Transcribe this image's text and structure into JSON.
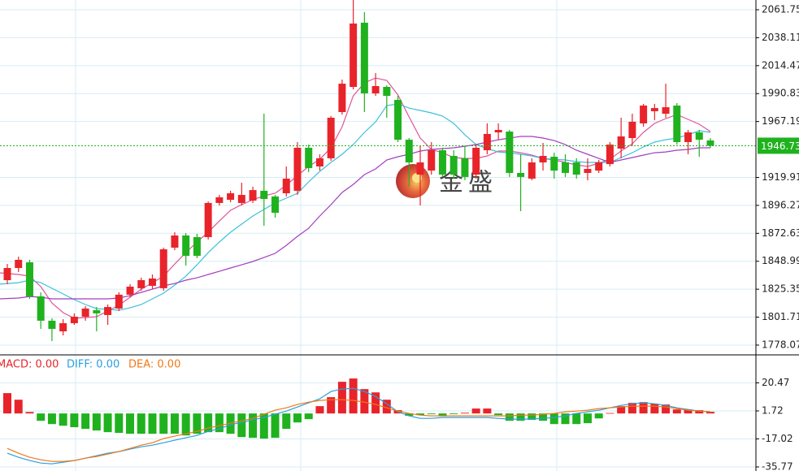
{
  "chart_data": [
    {
      "type": "candlestick",
      "up_color": "#e8242a",
      "down_color": "#1fb21e",
      "open": [
        1833.0,
        1843.3,
        1848.1,
        1819.3,
        1798.7,
        1789.7,
        1796.6,
        1802.1,
        1807.6,
        1803.5,
        1809.0,
        1820.7,
        1826.2,
        1828.2,
        1826.2,
        1860.5,
        1870.8,
        1869.4,
        1869.4,
        1898.3,
        1901.0,
        1898.3,
        1900.3,
        1908.6,
        1903.8,
        1906.5,
        1908.6,
        1945.0,
        1929.2,
        1936.1,
        1975.2,
        1996.5,
        2050.8,
        1991.0,
        1996.5,
        1985.5,
        1951.8,
        1922.3,
        1925.7,
        1942.9,
        1938.1,
        1936.1,
        1922.3,
        1942.9,
        1958.0,
        1958.7,
        1923.7,
        1918.9,
        1932.6,
        1937.4,
        1932.6,
        1932.6,
        1923.7,
        1925.7,
        1931.2,
        1944.3,
        1953.2,
        1965.6,
        1975.9,
        1973.8,
        1980.7,
        1949.8,
        1958.0,
        1951.2
      ],
      "high": [
        1846.7,
        1852.9,
        1850.2,
        1822.7,
        1800.7,
        1800.0,
        1804.9,
        1811.0,
        1810.3,
        1812.4,
        1822.7,
        1829.6,
        1835.1,
        1837.8,
        1860.5,
        1873.5,
        1872.9,
        1872.2,
        1899.6,
        1905.1,
        1908.6,
        1915.4,
        1912.0,
        1973.8,
        1905.1,
        1929.2,
        1949.8,
        1947.7,
        1939.5,
        1971.8,
        2002.7,
        2070.0,
        2059.7,
        2008.2,
        1997.9,
        1988.9,
        1953.2,
        1946.4,
        1949.8,
        1945.0,
        1942.9,
        1946.4,
        1947.7,
        1965.6,
        1965.6,
        1960.1,
        1939.5,
        1936.1,
        1949.1,
        1940.9,
        1939.5,
        1936.1,
        1936.1,
        1934.7,
        1949.8,
        1970.4,
        1973.8,
        1982.1,
        1982.1,
        1999.2,
        1982.8,
        1960.1,
        1960.1,
        1953.2
      ],
      "low": [
        1829.6,
        1839.9,
        1817.2,
        1791.8,
        1781.5,
        1786.3,
        1795.2,
        1798.7,
        1789.7,
        1795.2,
        1806.9,
        1818.6,
        1824.1,
        1825.5,
        1824.1,
        1858.4,
        1845.4,
        1851.6,
        1867.4,
        1896.2,
        1898.9,
        1896.2,
        1898.3,
        1879.0,
        1885.9,
        1903.8,
        1905.1,
        1924.4,
        1925.7,
        1934.0,
        1973.1,
        1994.4,
        1975.2,
        1988.9,
        1970.4,
        1949.8,
        1912.0,
        1896.2,
        1922.3,
        1920.3,
        1918.9,
        1917.5,
        1918.9,
        1939.5,
        1951.8,
        1920.3,
        1891.4,
        1917.5,
        1925.7,
        1918.9,
        1920.3,
        1918.9,
        1917.5,
        1923.7,
        1929.2,
        1936.1,
        1946.4,
        1962.8,
        1968.3,
        1970.4,
        1947.7,
        1939.5,
        1937.4,
        1945.0
      ],
      "close": [
        1843.3,
        1850.2,
        1819.3,
        1798.7,
        1791.8,
        1796.6,
        1802.1,
        1809.0,
        1804.9,
        1810.3,
        1820.7,
        1827.5,
        1833.0,
        1834.4,
        1859.1,
        1870.8,
        1853.6,
        1853.6,
        1898.3,
        1903.1,
        1906.5,
        1905.1,
        1909.2,
        1901.7,
        1890.0,
        1918.9,
        1945.0,
        1927.8,
        1936.1,
        1970.4,
        1999.2,
        2050.1,
        1991.0,
        1997.2,
        1988.9,
        1951.8,
        1932.6,
        1932.6,
        1942.9,
        1922.3,
        1922.3,
        1920.3,
        1945.0,
        1956.7,
        1960.1,
        1923.7,
        1920.3,
        1932.6,
        1938.1,
        1925.7,
        1923.7,
        1922.3,
        1927.1,
        1932.6,
        1947.7,
        1954.6,
        1967.0,
        1980.7,
        1978.6,
        1979.3,
        1949.8,
        1958.0,
        1951.8,
        1946.7
      ],
      "series": [
        {
          "color": "#e0559a",
          "values": [
            1839.2,
            1837.8,
            1836.4,
            1827.5,
            1813.7,
            1805.5,
            1800.7,
            1801.4,
            1802.1,
            1806.9,
            1811.7,
            1818.6,
            1825.4,
            1830.9,
            1836.4,
            1846.7,
            1856.3,
            1865.3,
            1873.5,
            1883.1,
            1892.1,
            1896.9,
            1901.0,
            1904.4,
            1906.5,
            1913.4,
            1921.6,
            1929.2,
            1935.3,
            1945.0,
            1962.8,
            1988.9,
            1999.9,
            2004.0,
            2002.0,
            1989.6,
            1971.1,
            1953.2,
            1943.6,
            1940.8,
            1936.7,
            1936.0,
            1936.0,
            1938.1,
            1942.2,
            1942.2,
            1940.8,
            1938.8,
            1936.0,
            1934.7,
            1932.6,
            1930.5,
            1929.2,
            1931.9,
            1935.3,
            1942.2,
            1948.4,
            1958.0,
            1965.6,
            1969.7,
            1973.1,
            1969.0,
            1964.9,
            1958.7
          ]
        },
        {
          "color": "#3cc0dc",
          "values": [
            1829.6,
            1830.9,
            1833.0,
            1830.9,
            1826.1,
            1821.3,
            1816.5,
            1812.4,
            1808.9,
            1808.3,
            1807.6,
            1809.6,
            1812.4,
            1817.2,
            1822.0,
            1828.9,
            1836.4,
            1846.0,
            1856.3,
            1865.3,
            1873.5,
            1880.4,
            1887.3,
            1892.8,
            1898.3,
            1902.4,
            1906.5,
            1916.1,
            1925.0,
            1932.6,
            1939.5,
            1947.7,
            1958.0,
            1966.9,
            1980.7,
            1982.1,
            1978.6,
            1976.6,
            1974.5,
            1971.8,
            1965.6,
            1956.0,
            1947.7,
            1944.3,
            1941.5,
            1940.8,
            1939.5,
            1938.1,
            1936.0,
            1935.3,
            1934.7,
            1933.3,
            1932.6,
            1932.6,
            1932.6,
            1936.7,
            1940.8,
            1945.7,
            1949.8,
            1951.8,
            1953.2,
            1956.0,
            1959.4,
            1958.0
          ]
        },
        {
          "color": "#a13fc0",
          "values": [
            1817.2,
            1817.9,
            1819.2,
            1818.6,
            1817.2,
            1817.2,
            1817.2,
            1817.2,
            1817.2,
            1817.2,
            1817.9,
            1819.9,
            1822.7,
            1825.4,
            1828.2,
            1830.2,
            1833.0,
            1835.0,
            1837.8,
            1840.5,
            1843.3,
            1846.0,
            1848.8,
            1852.2,
            1855.7,
            1862.5,
            1870.1,
            1876.9,
            1887.3,
            1896.9,
            1907.2,
            1914.0,
            1922.3,
            1927.1,
            1934.7,
            1937.4,
            1939.5,
            1942.2,
            1943.6,
            1944.3,
            1945.0,
            1946.3,
            1947.7,
            1949.8,
            1951.8,
            1953.2,
            1954.6,
            1954.6,
            1953.2,
            1951.1,
            1947.7,
            1942.9,
            1939.5,
            1936.0,
            1932.6,
            1934.7,
            1936.7,
            1938.8,
            1940.8,
            1941.5,
            1942.9,
            1943.6,
            1945.0,
            1945.0
          ]
        }
      ],
      "ylim": [
        1769.8,
        2070.0
      ],
      "yticks": [
        2061.75,
        2038.11,
        2014.47,
        1990.83,
        1967.19,
        1919.91,
        1896.27,
        1872.63,
        1848.99,
        1825.35,
        1801.71,
        1778.07
      ],
      "last_price": 1946.73,
      "last_price_color": "#1fb21e",
      "grid": true,
      "watermark": "金盛"
    },
    {
      "type": "macd",
      "legend": [
        {
          "label": "MACD: 0.00",
          "color": "#e8242a"
        },
        {
          "label": "DIFF: 0.00",
          "color": "#2a9fe0"
        },
        {
          "label": "DEA: 0.00",
          "color": "#f07818"
        }
      ],
      "up_color": "#e8242a",
      "down_color": "#1fb21e",
      "values": [
        13.6,
        9.2,
        1.0,
        -4.9,
        -7.1,
        -8.2,
        -9.2,
        -10.3,
        -11.4,
        -12.5,
        -13.0,
        -13.6,
        -13.6,
        -13.6,
        -13.6,
        -13.6,
        -14.7,
        -13.6,
        -12.5,
        -12.5,
        -13.6,
        -15.8,
        -16.3,
        -16.8,
        -16.3,
        -10.3,
        -6.0,
        -3.8,
        4.9,
        10.9,
        21.2,
        23.4,
        16.3,
        14.1,
        9.2,
        2.2,
        -1.6,
        -1.1,
        -0.5,
        -1.6,
        -0.5,
        0.5,
        3.3,
        3.3,
        -1.1,
        -4.9,
        -4.9,
        -4.3,
        -4.9,
        -7.1,
        -7.1,
        -7.1,
        -6.5,
        -3.3,
        0.3,
        4.9,
        7.1,
        7.6,
        6.5,
        6.0,
        2.7,
        2.7,
        2.2,
        1.1
      ],
      "series": [
        {
          "color": "#2a9fe0",
          "values": [
            -26.6,
            -29.3,
            -31.5,
            -33.2,
            -33.7,
            -32.6,
            -31.5,
            -29.9,
            -28.3,
            -26.6,
            -25.5,
            -23.9,
            -22.3,
            -21.2,
            -19.6,
            -17.9,
            -16.3,
            -14.7,
            -12.0,
            -10.3,
            -7.6,
            -6.0,
            -4.3,
            -2.7,
            -0.5,
            1.6,
            4.3,
            7.1,
            9.8,
            14.7,
            16.3,
            16.8,
            14.7,
            11.4,
            6.5,
            1.1,
            -1.6,
            -3.3,
            -3.3,
            -2.7,
            -2.7,
            -2.7,
            -2.7,
            -2.7,
            -3.3,
            -3.8,
            -3.8,
            -3.8,
            -3.3,
            -2.7,
            -1.6,
            0.0,
            1.1,
            2.2,
            3.8,
            5.4,
            6.5,
            7.1,
            6.5,
            5.4,
            3.8,
            2.7,
            1.6,
            1.1
          ]
        },
        {
          "color": "#f07818",
          "values": [
            -23.4,
            -26.6,
            -29.3,
            -31.0,
            -32.1,
            -32.1,
            -31.5,
            -29.9,
            -28.8,
            -27.2,
            -25.5,
            -23.4,
            -21.2,
            -19.6,
            -16.8,
            -15.2,
            -13.6,
            -12.0,
            -9.8,
            -8.2,
            -6.5,
            -4.9,
            -3.3,
            -0.5,
            2.2,
            3.8,
            6.0,
            7.6,
            8.7,
            9.2,
            9.2,
            8.7,
            7.6,
            6.0,
            3.8,
            1.6,
            0.0,
            -1.1,
            -1.6,
            -1.6,
            -1.6,
            -1.6,
            -1.6,
            -1.6,
            -1.6,
            -1.6,
            -1.1,
            -1.1,
            -0.5,
            0.0,
            1.1,
            1.6,
            2.2,
            3.3,
            3.8,
            4.3,
            4.9,
            4.9,
            4.9,
            4.3,
            3.3,
            2.2,
            1.6,
            1.1
          ]
        }
      ],
      "ylim": [
        -38.5,
        39.2
      ],
      "yticks": [
        20.47,
        1.72,
        -17.02,
        -35.77
      ],
      "grid": true
    }
  ]
}
